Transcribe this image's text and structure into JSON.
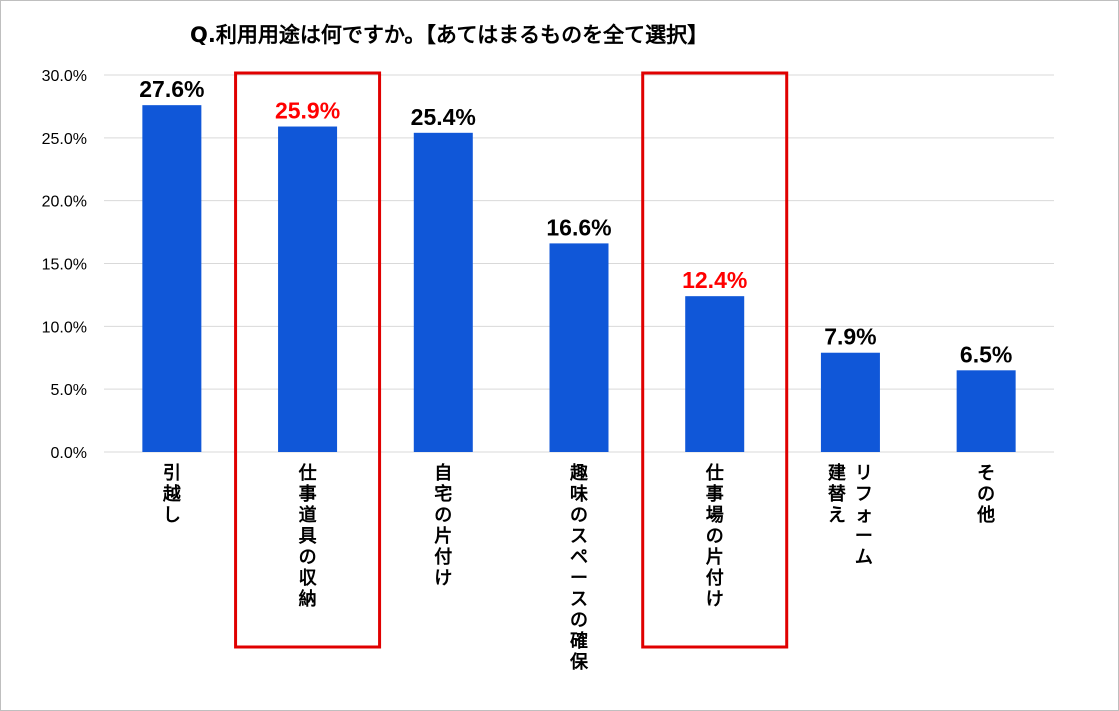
{
  "chart_data": {
    "type": "bar",
    "title": "Q.利用用途は何ですか。【あてはまるものを全て選択】",
    "categories": [
      "引越し",
      "仕事道具の収納",
      "自宅の片付け",
      "趣味のスペースの確保",
      "仕事場の片付け",
      "リフォーム建替え",
      "その他"
    ],
    "category_lines": [
      [
        "引越し"
      ],
      [
        "仕事道具の収納"
      ],
      [
        "自宅の片付け"
      ],
      [
        "趣味のスペースの確保"
      ],
      [
        "仕事場の片付け"
      ],
      [
        "リフォーム",
        "建替え"
      ],
      [
        "その他"
      ]
    ],
    "values": [
      27.6,
      25.9,
      25.4,
      16.6,
      12.4,
      7.9,
      6.5
    ],
    "data_labels": [
      "27.6%",
      "25.9%",
      "25.4%",
      "16.6%",
      "12.4%",
      "7.9%",
      "6.5%"
    ],
    "ytick_labels": [
      "0.0%",
      "5.0%",
      "10.0%",
      "15.0%",
      "20.0%",
      "25.0%",
      "30.0%"
    ],
    "ylim": [
      0,
      30
    ],
    "ytick_step": 5,
    "grid": true,
    "highlighted_categories": [
      1,
      4
    ],
    "colors": {
      "bar": "#1057D8",
      "label_default": "#000000",
      "label_highlight": "#FF0000",
      "highlight_box": "#E00000",
      "grid": "#D9D9D9"
    }
  }
}
